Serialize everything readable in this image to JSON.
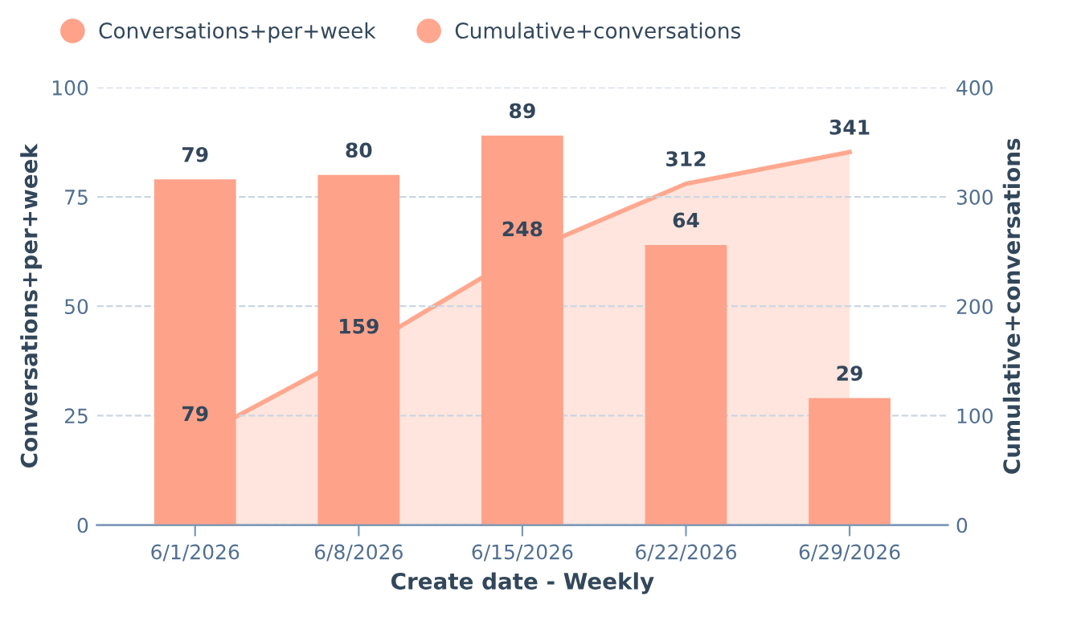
{
  "chart_data": {
    "type": "bar",
    "xlabel": "Create date - Weekly",
    "ylabel": "Conversations+per+week",
    "y2label": "Cumulative+conversations",
    "categories": [
      "6/1/2026",
      "6/8/2026",
      "6/15/2026",
      "6/22/2026",
      "6/29/2026"
    ],
    "series": [
      {
        "name": "Conversations+per+week",
        "color": "#ffa28a",
        "values": [
          79,
          80,
          89,
          64,
          29
        ]
      },
      {
        "name": "Cumulative+conversations",
        "type": "area",
        "axis": "y2",
        "color": "#ffa88f",
        "values": [
          79,
          159,
          248,
          312,
          341
        ]
      }
    ],
    "ylim": [
      0,
      100
    ],
    "yticks": [
      0,
      25,
      50,
      75,
      100
    ],
    "y2lim": [
      0,
      400
    ],
    "y2ticks": [
      0,
      100,
      200,
      300,
      400
    ],
    "grid": "y",
    "legend": "top left",
    "data_labels": true,
    "marker": "none"
  }
}
